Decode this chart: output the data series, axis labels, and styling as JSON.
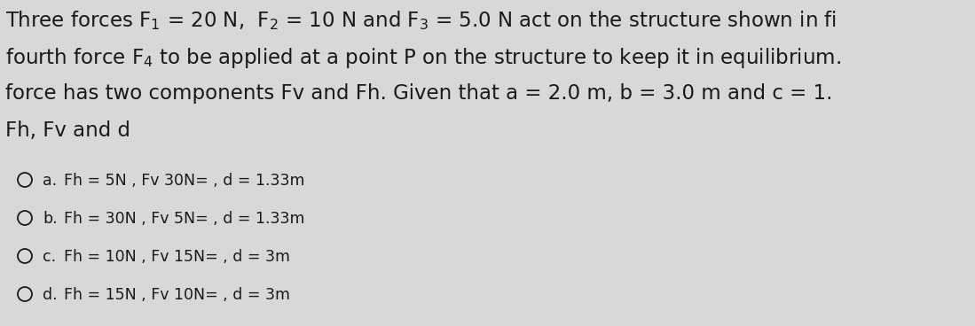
{
  "bg_color": "#d8d8d8",
  "text_color": "#1a1a1a",
  "title_lines": [
    "Three forces F$_1$ = 20 N,  F$_2$ = 10 N and F$_3$ = 5.0 N act on the structure shown in fi",
    "fourth force F$_4$ to be applied at a point P on the structure to keep it in equilibrium.",
    "force has two components Fv and Fh. Given that a = 2.0 m, b = 3.0 m and c = 1.",
    "Fh, Fv and d"
  ],
  "options": [
    {
      "label": "a.",
      "text": "Fh = 5N , Fv 30N= , d = 1.33m"
    },
    {
      "label": "b.",
      "text": "Fh = 30N , Fv 5N= , d = 1.33m"
    },
    {
      "label": "c.",
      "text": "Fh = 10N , Fv 15N= , d = 3m"
    },
    {
      "label": "d.",
      "text": "Fh = 15N , Fv 10N= , d = 3m"
    }
  ],
  "title_fontsize": 16.5,
  "option_fontsize": 12.5,
  "font_family": "DejaVu Sans"
}
